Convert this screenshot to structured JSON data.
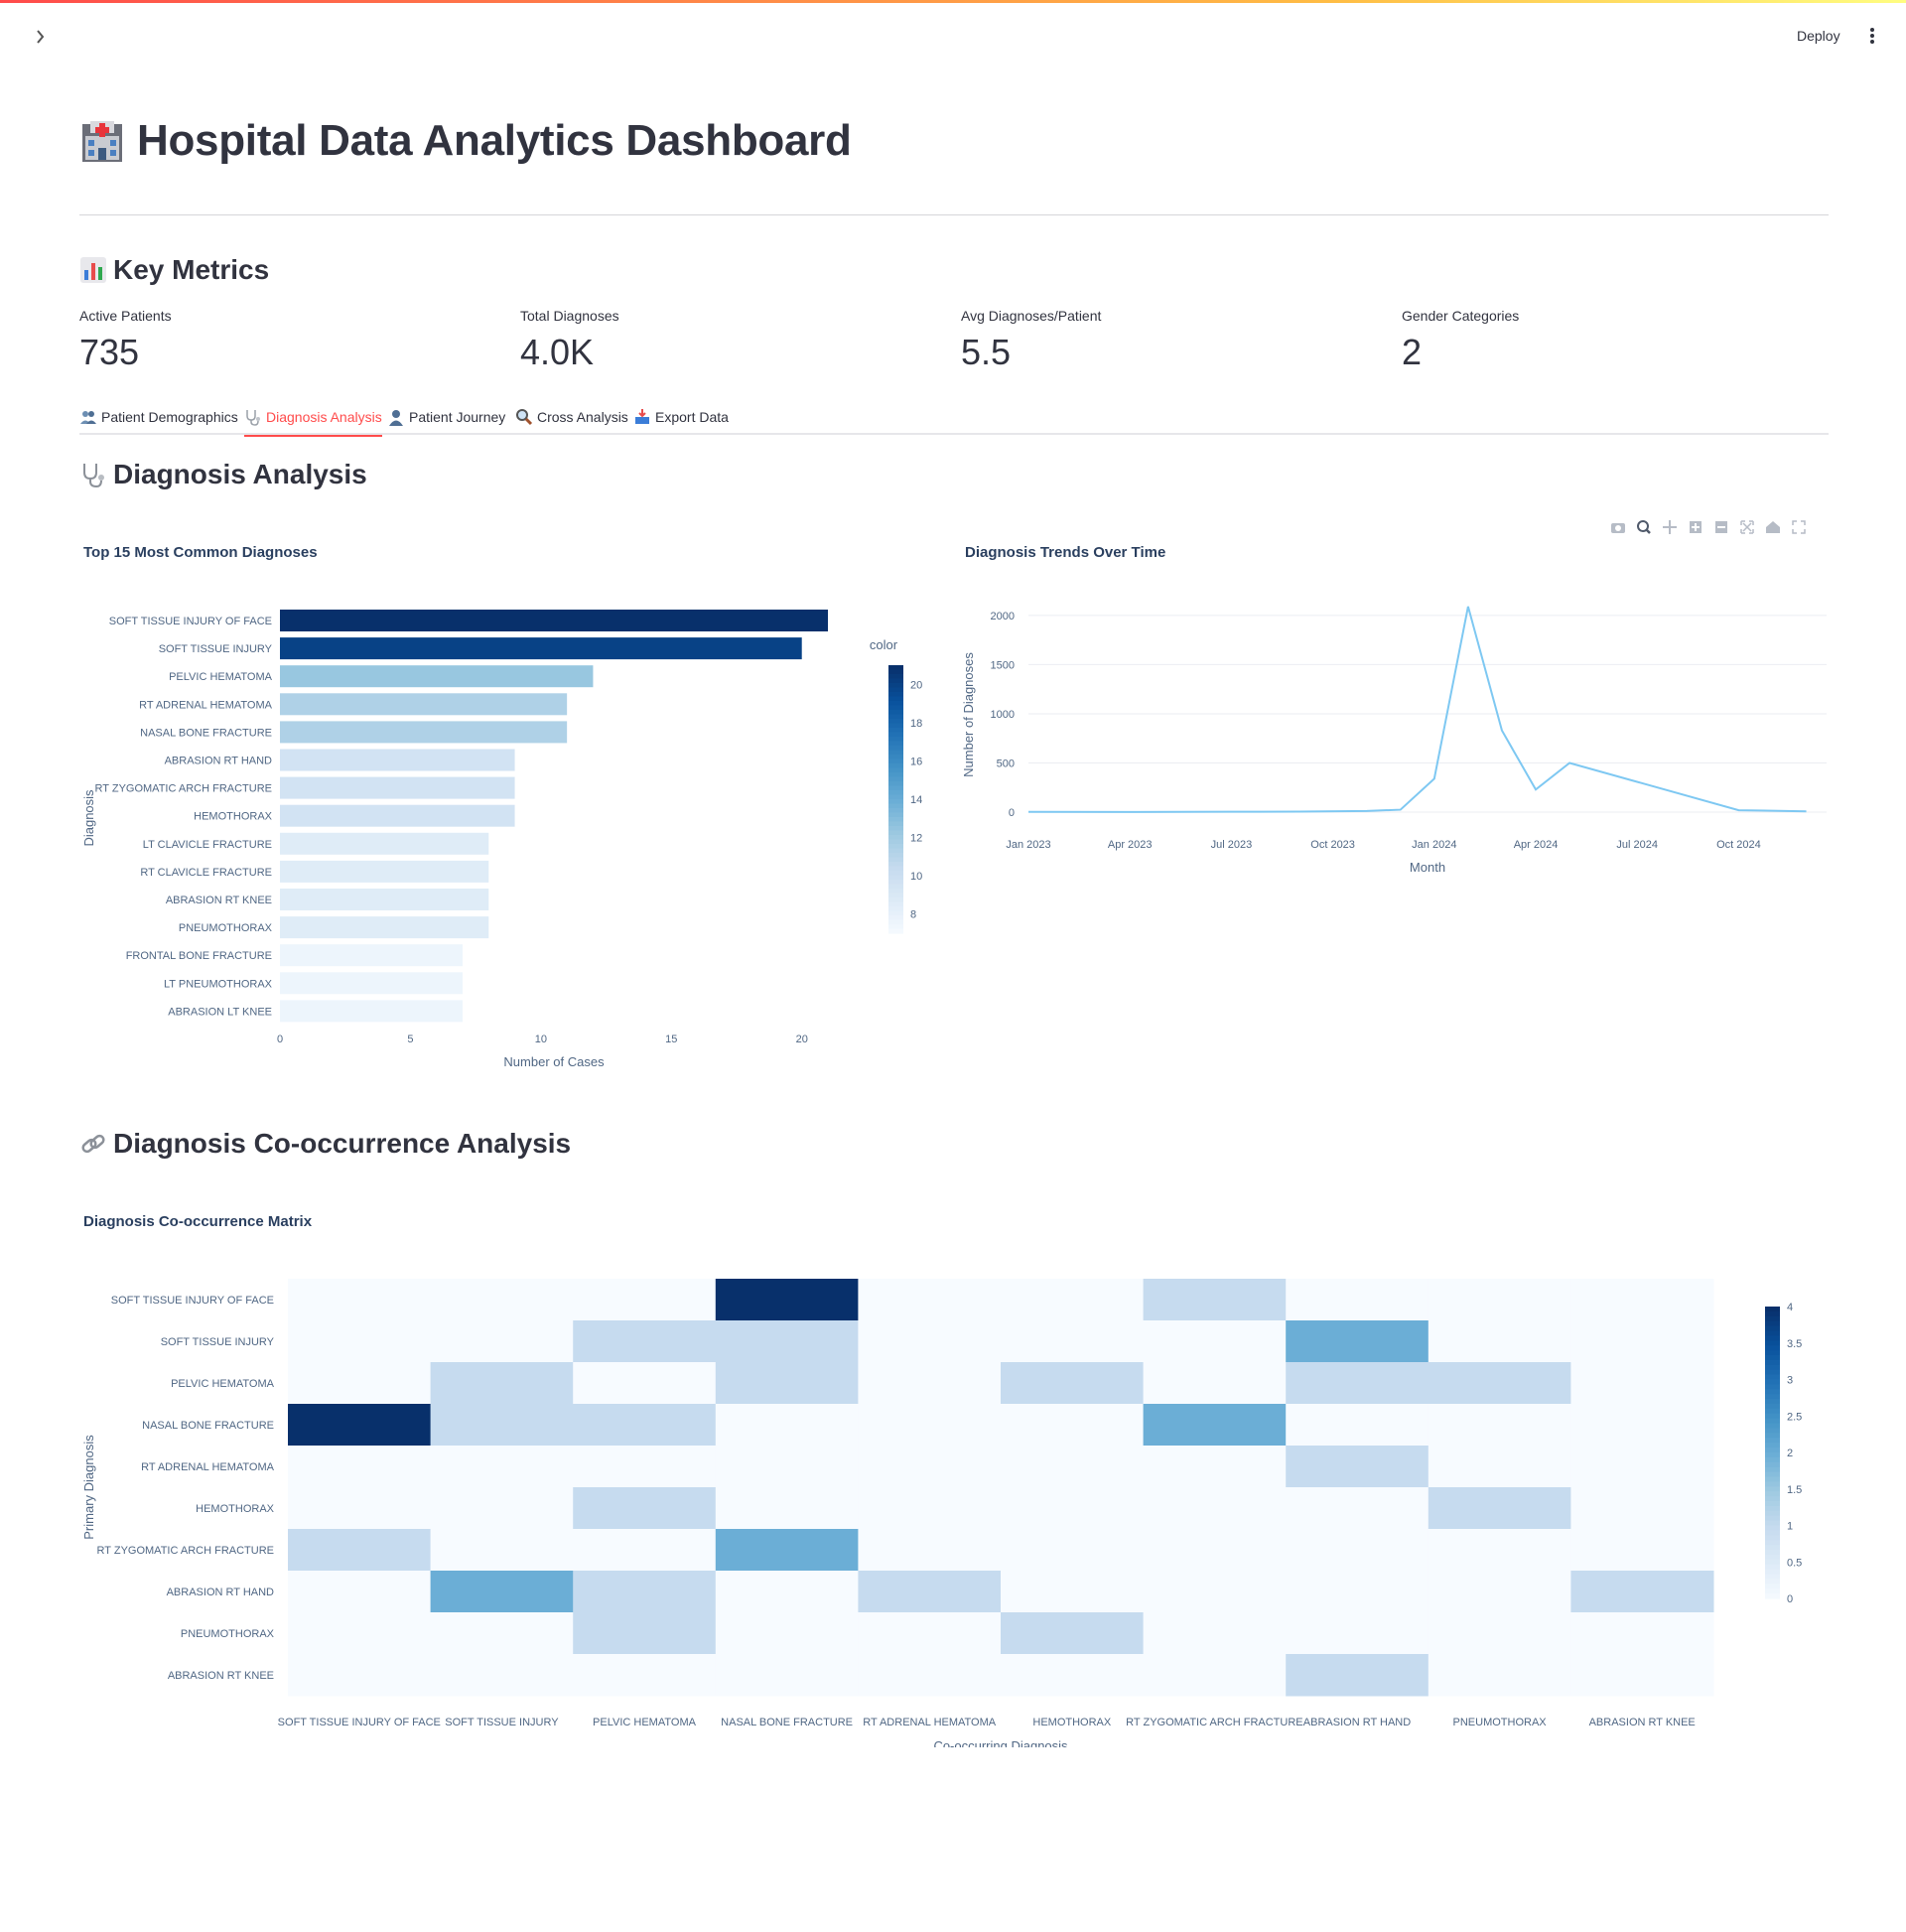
{
  "header": {
    "deploy_label": "Deploy"
  },
  "title": "Hospital Data Analytics Dashboard",
  "key_metrics": {
    "heading": "Key Metrics",
    "items": [
      {
        "label": "Active Patients",
        "value": "735"
      },
      {
        "label": "Total Diagnoses",
        "value": "4.0K"
      },
      {
        "label": "Avg Diagnoses/Patient",
        "value": "5.5"
      },
      {
        "label": "Gender Categories",
        "value": "2"
      }
    ]
  },
  "tabs": [
    {
      "label": "Patient Demographics",
      "icon": "people-icon"
    },
    {
      "label": "Diagnosis Analysis",
      "icon": "stethoscope-icon",
      "active": true
    },
    {
      "label": "Patient Journey",
      "icon": "person-icon"
    },
    {
      "label": "Cross Analysis",
      "icon": "magnifier-icon"
    },
    {
      "label": "Export Data",
      "icon": "inbox-tray-icon"
    }
  ],
  "diagnosis_section": {
    "heading": "Diagnosis Analysis"
  },
  "cooccurrence_section": {
    "heading": "Diagnosis Co-occurrence Analysis"
  },
  "colors": {
    "accent": "#ff4b4b",
    "line": "#7ec8f2",
    "dark_blue": "#08306b"
  },
  "chart_data": [
    {
      "type": "bar",
      "orientation": "horizontal",
      "title": "Top 15 Most Common Diagnoses",
      "xlabel": "Number of Cases",
      "ylabel": "Diagnosis",
      "colorbar_title": "color",
      "colorbar_ticks": [
        "20",
        "18",
        "16",
        "14",
        "12",
        "10",
        "8"
      ],
      "colorbar_range": [
        7,
        21
      ],
      "xlim": [
        0,
        21
      ],
      "xticks": [
        0,
        5,
        10,
        15,
        20
      ],
      "categories": [
        "SOFT TISSUE INJURY OF FACE",
        "SOFT TISSUE INJURY",
        "PELVIC HEMATOMA",
        "RT ADRENAL HEMATOMA",
        "NASAL BONE FRACTURE",
        "ABRASION RT HAND",
        "RT ZYGOMATIC ARCH FRACTURE",
        "HEMOTHORAX",
        "LT CLAVICLE FRACTURE",
        "RT CLAVICLE FRACTURE",
        "ABRASION RT KNEE",
        "PNEUMOTHORAX",
        "FRONTAL BONE FRACTURE",
        "LT PNEUMOTHORAX",
        "ABRASION LT KNEE"
      ],
      "values": [
        21,
        20,
        12,
        11,
        11,
        9,
        9,
        9,
        8,
        8,
        8,
        8,
        7,
        7,
        7
      ]
    },
    {
      "type": "line",
      "title": "Diagnosis Trends Over Time",
      "xlabel": "Month",
      "ylabel": "Number of Diagnoses",
      "xticks": [
        "Jan 2023",
        "Apr 2023",
        "Jul 2023",
        "Oct 2023",
        "Jan 2024",
        "Apr 2024",
        "Jul 2024",
        "Oct 2024"
      ],
      "yticks": [
        "0",
        "500",
        "1000",
        "1500",
        "2000"
      ],
      "ylim": [
        -60,
        2200
      ],
      "month_index_range": [
        0,
        23
      ],
      "points": [
        {
          "m": 0,
          "v": 3
        },
        {
          "m": 3,
          "v": 2
        },
        {
          "m": 6,
          "v": 4
        },
        {
          "m": 8,
          "v": 6
        },
        {
          "m": 10,
          "v": 12
        },
        {
          "m": 11,
          "v": 25
        },
        {
          "m": 12,
          "v": 340
        },
        {
          "m": 13,
          "v": 2090
        },
        {
          "m": 14,
          "v": 830
        },
        {
          "m": 15,
          "v": 230
        },
        {
          "m": 16,
          "v": 500
        },
        {
          "m": 21,
          "v": 20
        },
        {
          "m": 23,
          "v": 8
        }
      ]
    },
    {
      "type": "heatmap",
      "title": "Diagnosis Co-occurrence Matrix",
      "xlabel": "Co-occurring Diagnosis",
      "ylabel": "Primary Diagnosis",
      "x": [
        "SOFT TISSUE INJURY OF FACE",
        "SOFT TISSUE INJURY",
        "PELVIC HEMATOMA",
        "NASAL BONE FRACTURE",
        "RT ADRENAL HEMATOMA",
        "HEMOTHORAX",
        "RT ZYGOMATIC ARCH FRACTURE",
        "ABRASION RT HAND",
        "PNEUMOTHORAX",
        "ABRASION RT KNEE"
      ],
      "y": [
        "SOFT TISSUE INJURY OF FACE",
        "SOFT TISSUE INJURY",
        "PELVIC HEMATOMA",
        "NASAL BONE FRACTURE",
        "RT ADRENAL HEMATOMA",
        "HEMOTHORAX",
        "RT ZYGOMATIC ARCH FRACTURE",
        "ABRASION RT HAND",
        "PNEUMOTHORAX",
        "ABRASION RT KNEE"
      ],
      "z": [
        [
          0,
          0,
          0,
          4,
          0,
          0,
          1,
          0,
          0,
          0
        ],
        [
          0,
          0,
          1,
          1,
          0,
          0,
          0,
          2,
          0,
          0
        ],
        [
          0,
          1,
          0,
          1,
          0,
          1,
          0,
          1,
          1,
          0
        ],
        [
          4,
          1,
          1,
          0,
          0,
          0,
          2,
          0,
          0,
          0
        ],
        [
          0,
          0,
          0,
          0,
          0,
          0,
          0,
          1,
          0,
          0
        ],
        [
          0,
          0,
          1,
          0,
          0,
          0,
          0,
          0,
          1,
          0
        ],
        [
          1,
          0,
          0,
          2,
          0,
          0,
          0,
          0,
          0,
          0
        ],
        [
          0,
          2,
          1,
          0,
          1,
          0,
          0,
          0,
          0,
          1
        ],
        [
          0,
          0,
          1,
          0,
          0,
          1,
          0,
          0,
          0,
          0
        ],
        [
          0,
          0,
          0,
          0,
          0,
          0,
          0,
          1,
          0,
          0
        ]
      ],
      "zlim": [
        0,
        4
      ],
      "colorbar_ticks": [
        "4",
        "3.5",
        "3",
        "2.5",
        "2",
        "1.5",
        "1",
        "0.5",
        "0"
      ]
    }
  ]
}
